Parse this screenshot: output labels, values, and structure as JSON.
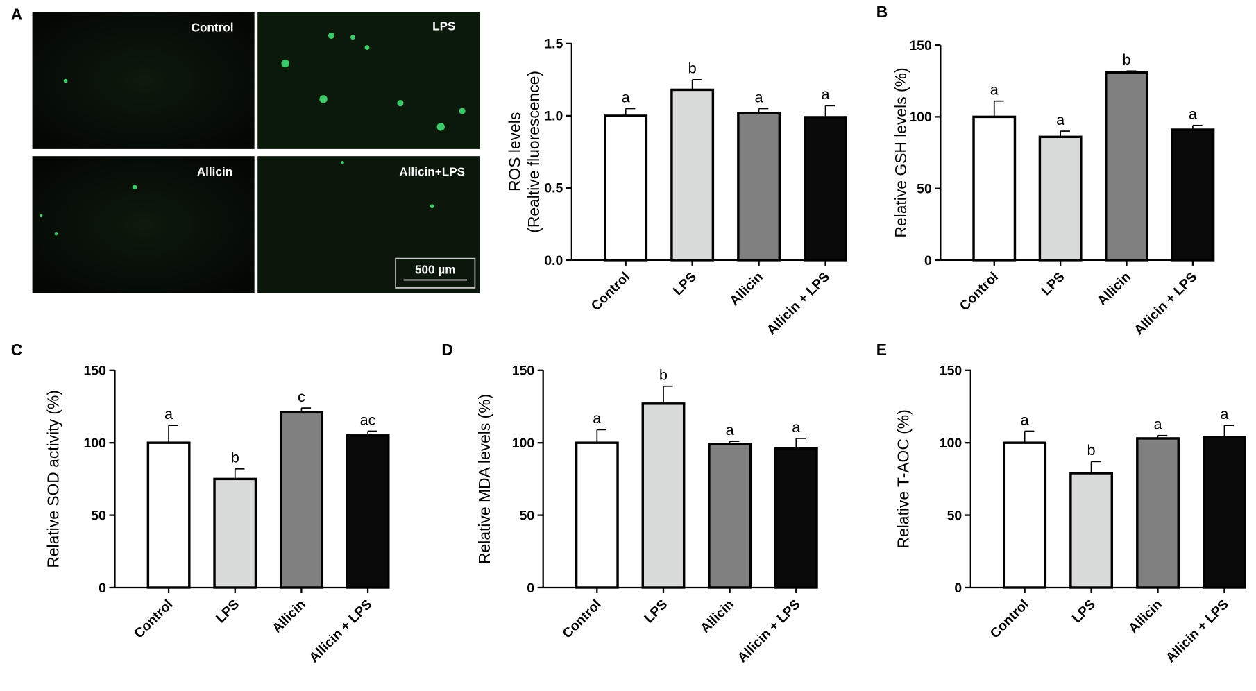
{
  "panel_labels": [
    "A",
    "B",
    "C",
    "D",
    "E"
  ],
  "micrographs": [
    "Control",
    "LPS",
    "Allicin",
    "Allicin+LPS"
  ],
  "scale_bar": "500 µm",
  "chart_data": [
    {
      "type": "bar",
      "ylabel": [
        "ROS levels",
        "(Realtive fluorescence)"
      ],
      "categories": [
        "Control",
        "LPS",
        "Allicin",
        "Allicin + LPS"
      ],
      "values": [
        1.0,
        1.18,
        1.02,
        0.99
      ],
      "errors": [
        0.05,
        0.07,
        0.03,
        0.08
      ],
      "annotations": [
        "a",
        "b",
        "a",
        "a"
      ],
      "colors": [
        "#ffffff",
        "#d9dbda",
        "#808080",
        "#0a0a0a"
      ],
      "ylim": [
        0,
        1.5
      ],
      "yticks": [
        {
          "value": 0,
          "label": "0.0"
        },
        {
          "value": 0.5,
          "label": "0.5"
        },
        {
          "value": 1,
          "label": "1.0"
        },
        {
          "value": 1.5,
          "label": "1.5"
        }
      ]
    },
    {
      "type": "bar",
      "ylabel": "Relative GSH levels (%)",
      "categories": [
        "Control",
        "LPS",
        "Allicin",
        "Allicin + LPS"
      ],
      "values": [
        100,
        86,
        131,
        91
      ],
      "errors": [
        11,
        4,
        1,
        3
      ],
      "annotations": [
        "a",
        "a",
        "b",
        "a"
      ],
      "colors": [
        "#ffffff",
        "#d9dbda",
        "#808080",
        "#0a0a0a"
      ],
      "ylim": [
        0,
        150
      ],
      "yticks": [
        0,
        50,
        100,
        150
      ]
    },
    {
      "type": "bar",
      "ylabel": "Relative SOD activity (%)",
      "categories": [
        "Control",
        "LPS",
        "Allicin",
        "Allicin + LPS"
      ],
      "values": [
        100,
        75,
        121,
        105
      ],
      "errors": [
        12,
        7,
        3,
        3
      ],
      "annotations": [
        "a",
        "b",
        "c",
        "ac"
      ],
      "colors": [
        "#ffffff",
        "#d9dbda",
        "#808080",
        "#0a0a0a"
      ],
      "ylim": [
        0,
        150
      ],
      "yticks": [
        0,
        50,
        100,
        150
      ]
    },
    {
      "type": "bar",
      "ylabel": "Relative MDA levels (%)",
      "categories": [
        "Control",
        "LPS",
        "Allicin",
        "Allicin + LPS"
      ],
      "values": [
        100,
        127,
        99,
        96
      ],
      "errors": [
        9,
        12,
        2,
        7
      ],
      "annotations": [
        "a",
        "b",
        "a",
        "a"
      ],
      "colors": [
        "#ffffff",
        "#d9dbda",
        "#808080",
        "#0a0a0a"
      ],
      "ylim": [
        0,
        150
      ],
      "yticks": [
        0,
        50,
        100,
        150
      ]
    },
    {
      "type": "bar",
      "ylabel": "Relative T-AOC  (%)",
      "categories": [
        "Control",
        "LPS",
        "Allicin",
        "Allicin + LPS"
      ],
      "values": [
        100,
        79,
        103,
        104
      ],
      "errors": [
        8,
        8,
        2,
        8
      ],
      "annotations": [
        "a",
        "b",
        "a",
        "a"
      ],
      "colors": [
        "#ffffff",
        "#d9dbda",
        "#808080",
        "#0a0a0a"
      ],
      "ylim": [
        0,
        150
      ],
      "yticks": [
        0,
        50,
        100,
        150
      ]
    }
  ]
}
